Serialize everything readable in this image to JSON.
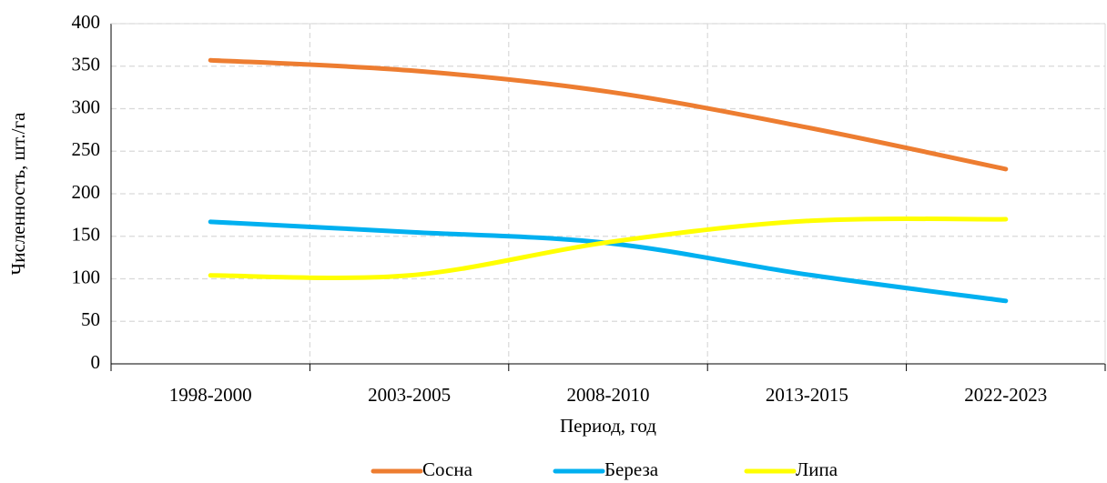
{
  "chart_data": {
    "type": "line",
    "x_label": "Период, год",
    "y_label": "Численность, шт./га",
    "categories": [
      "1998-2000",
      "2003-2005",
      "2008-2010",
      "2013-2015",
      "2022-2023"
    ],
    "series": [
      {
        "name": "Сосна",
        "color": "#ed7d31",
        "values": [
          357,
          345,
          320,
          278,
          229
        ]
      },
      {
        "name": "Береза",
        "color": "#00b0f0",
        "values": [
          167,
          155,
          142,
          105,
          74
        ]
      },
      {
        "name": "Липа",
        "color": "#ffff00",
        "values": [
          104,
          104,
          143,
          168,
          170
        ]
      }
    ],
    "ylim": [
      0,
      400
    ],
    "yticks": [
      0,
      50,
      100,
      150,
      200,
      250,
      300,
      350,
      400
    ],
    "grid": true,
    "smooth": true,
    "legend": "bottom"
  }
}
